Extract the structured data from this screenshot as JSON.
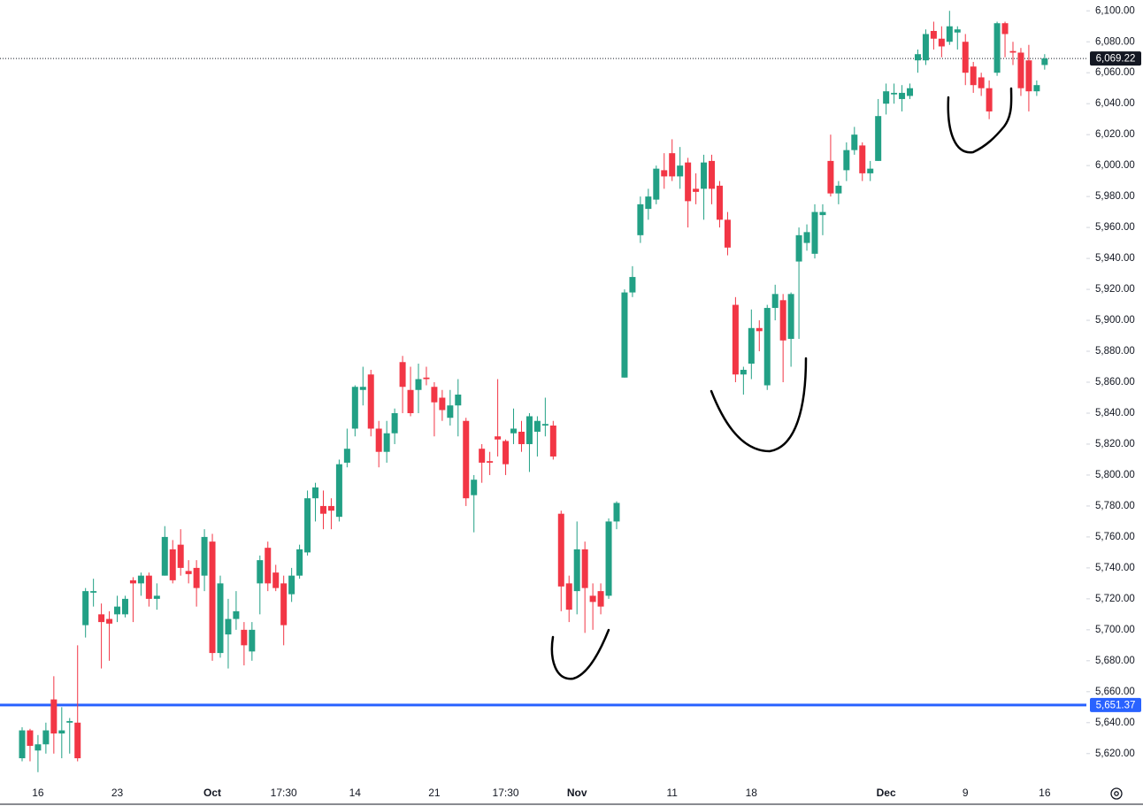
{
  "chart_data": {
    "type": "candlestick",
    "up_color": "#22a085",
    "down_color": "#f23645",
    "ylim": [
      5601,
      6107
    ],
    "yticks": [
      {
        "value": 5620,
        "label": "5,620.00"
      },
      {
        "value": 5640,
        "label": "5,640.00"
      },
      {
        "value": 5660,
        "label": "5,660.00"
      },
      {
        "value": 5680,
        "label": "5,680.00"
      },
      {
        "value": 5700,
        "label": "5,700.00"
      },
      {
        "value": 5720,
        "label": "5,720.00"
      },
      {
        "value": 5740,
        "label": "5,740.00"
      },
      {
        "value": 5760,
        "label": "5,760.00"
      },
      {
        "value": 5780,
        "label": "5,780.00"
      },
      {
        "value": 5800,
        "label": "5,800.00"
      },
      {
        "value": 5820,
        "label": "5,820.00"
      },
      {
        "value": 5840,
        "label": "5,840.00"
      },
      {
        "value": 5860,
        "label": "5,860.00"
      },
      {
        "value": 5880,
        "label": "5,880.00"
      },
      {
        "value": 5900,
        "label": "5,900.00"
      },
      {
        "value": 5920,
        "label": "5,920.00"
      },
      {
        "value": 5940,
        "label": "5,940.00"
      },
      {
        "value": 5960,
        "label": "5,960.00"
      },
      {
        "value": 5980,
        "label": "5,980.00"
      },
      {
        "value": 6000,
        "label": "6,000.00"
      },
      {
        "value": 6020,
        "label": "6,020.00"
      },
      {
        "value": 6040,
        "label": "6,040.00"
      },
      {
        "value": 6060,
        "label": "6,060.00"
      },
      {
        "value": 6080,
        "label": "6,080.00"
      },
      {
        "value": 6100,
        "label": "6,100.00"
      }
    ],
    "hlines": [
      {
        "value": 5651.37,
        "label": "5,651.37",
        "color": "#2962ff"
      },
      {
        "value": 6069.22,
        "label": "6,069.22",
        "color": "#131722"
      }
    ],
    "categories": [
      null,
      null,
      "16",
      null,
      null,
      null,
      null,
      null,
      null,
      null,
      null,
      null,
      "23",
      null,
      null,
      null,
      null,
      null,
      null,
      null,
      null,
      null,
      null,
      null,
      "Oct",
      null,
      null,
      null,
      null,
      null,
      null,
      null,
      null,
      "17:30",
      null,
      null,
      null,
      null,
      null,
      null,
      null,
      null,
      "14",
      null,
      null,
      null,
      null,
      null,
      null,
      null,
      null,
      null,
      "21",
      null,
      null,
      null,
      null,
      null,
      null,
      null,
      null,
      "17:30",
      null,
      null,
      null,
      null,
      null,
      null,
      null,
      null,
      "Nov",
      null,
      null,
      null,
      null,
      null,
      null,
      null,
      null,
      null,
      null,
      null,
      "11",
      null,
      null,
      null,
      null,
      null,
      null,
      null,
      null,
      null,
      "18",
      null,
      null,
      null,
      null,
      null,
      null,
      null,
      null,
      null,
      null,
      null,
      null,
      null,
      null,
      null,
      null,
      "Dec",
      null,
      null,
      null,
      null,
      null,
      null,
      null,
      null,
      null,
      "9",
      null,
      null,
      null,
      null,
      null,
      null,
      null,
      null,
      null,
      "16"
    ],
    "open": [
      5617,
      5635,
      5622,
      5626,
      5655,
      5633,
      5640,
      5640,
      5703,
      5724,
      5710,
      5707,
      5710,
      5710,
      5732,
      5730,
      5735,
      5720,
      5735,
      5752,
      5755,
      5738,
      5740,
      5735,
      5757,
      5685,
      5697,
      5707,
      5700,
      5686,
      5730,
      5753,
      5737,
      5730,
      5723,
      5735,
      5750,
      5785,
      5780,
      5780,
      5773,
      5808,
      5830,
      5855,
      5865,
      5830,
      5815,
      5827,
      5873,
      5855,
      5855,
      5863,
      5857,
      5850,
      5837,
      5845,
      5835,
      5787,
      5817,
      5809,
      5825,
      5822,
      5827,
      5828,
      5820,
      5828,
      5832,
      5832,
      5775,
      5730,
      5725,
      5752,
      5722,
      5725,
      5722,
      5770,
      5863,
      5918,
      5955,
      5972,
      5978,
      5997,
      6008,
      5993,
      6002,
      5985,
      5985,
      6003,
      5987,
      5965,
      5910,
      5865,
      5872,
      5895,
      5858,
      5908,
      5913,
      5888,
      5938,
      5950,
      5943,
      5968,
      6003,
      5982,
      5997,
      6010,
      6013,
      5995,
      6003,
      6040,
      6046,
      6043,
      6045,
      6068,
      6068,
      6087,
      6082,
      6080,
      6086,
      6080,
      6064,
      6057,
      6050,
      6060,
      6092,
      6074,
      6073,
      6068,
      6048,
      6065
    ],
    "high": [
      5637,
      5636,
      5632,
      5640,
      5670,
      5650,
      5643,
      5690,
      5727,
      5733,
      5717,
      5712,
      5722,
      5722,
      5734,
      5737,
      5737,
      5730,
      5767,
      5758,
      5765,
      5745,
      5745,
      5765,
      5762,
      5735,
      5720,
      5725,
      5705,
      5705,
      5748,
      5757,
      5742,
      5735,
      5740,
      5755,
      5790,
      5795,
      5790,
      5785,
      5810,
      5830,
      5858,
      5870,
      5868,
      5835,
      5835,
      5843,
      5877,
      5870,
      5872,
      5870,
      5860,
      5855,
      5855,
      5862,
      5837,
      5800,
      5820,
      5815,
      5862,
      5823,
      5843,
      5835,
      5840,
      5838,
      5850,
      5835,
      5777,
      5735,
      5770,
      5757,
      5730,
      5730,
      5772,
      5783,
      5920,
      5935,
      5980,
      5985,
      6000,
      6008,
      6017,
      6012,
      6005,
      5995,
      6007,
      6007,
      5990,
      5970,
      5915,
      5870,
      5907,
      5900,
      5910,
      5923,
      5917,
      5918,
      5960,
      5962,
      5975,
      5975,
      6020,
      5990,
      6015,
      6025,
      6015,
      6003,
      6043,
      6053,
      6053,
      6052,
      6053,
      6075,
      6088,
      6093,
      6090,
      6100,
      6090,
      6085,
      6067,
      6060,
      6055,
      6093,
      6093,
      6080,
      6076,
      6078,
      6055,
      6072
    ],
    "low": [
      5615,
      5615,
      5608,
      5620,
      5620,
      5617,
      5620,
      5615,
      5695,
      5715,
      5675,
      5680,
      5705,
      5708,
      5705,
      5722,
      5715,
      5713,
      5735,
      5730,
      5735,
      5730,
      5715,
      5725,
      5680,
      5682,
      5675,
      5700,
      5677,
      5680,
      5710,
      5725,
      5725,
      5690,
      5718,
      5733,
      5748,
      5770,
      5765,
      5765,
      5770,
      5805,
      5825,
      5845,
      5825,
      5805,
      5808,
      5820,
      5840,
      5838,
      5840,
      5858,
      5825,
      5835,
      5832,
      5825,
      5780,
      5763,
      5795,
      5800,
      5812,
      5800,
      5820,
      5815,
      5802,
      5812,
      5825,
      5810,
      5712,
      5705,
      5710,
      5698,
      5700,
      5710,
      5720,
      5765,
      5863,
      5915,
      5950,
      5965,
      5975,
      5985,
      5990,
      5985,
      5960,
      5975,
      5965,
      5975,
      5960,
      5942,
      5860,
      5852,
      5862,
      5880,
      5855,
      5900,
      5860,
      5870,
      5888,
      5945,
      5940,
      5955,
      5980,
      5975,
      5990,
      6007,
      5990,
      5990,
      6003,
      6033,
      6040,
      6035,
      6043,
      6060,
      6065,
      6075,
      6070,
      6078,
      6075,
      6052,
      6047,
      6045,
      6030,
      6058,
      6070,
      6065,
      6045,
      6035,
      6045,
      6062
    ],
    "close": [
      5635,
      5625,
      5626,
      5635,
      5633,
      5635,
      5641,
      5617,
      5725,
      5725,
      5705,
      5704,
      5715,
      5720,
      5730,
      5735,
      5720,
      5722,
      5760,
      5732,
      5740,
      5736,
      5727,
      5760,
      5685,
      5730,
      5707,
      5712,
      5690,
      5700,
      5745,
      5730,
      5727,
      5703,
      5735,
      5752,
      5785,
      5792,
      5775,
      5777,
      5807,
      5817,
      5857,
      5857,
      5830,
      5815,
      5827,
      5840,
      5857,
      5840,
      5862,
      5862,
      5847,
      5842,
      5845,
      5852,
      5785,
      5797,
      5808,
      5808,
      5823,
      5807,
      5830,
      5820,
      5838,
      5835,
      5833,
      5812,
      5728,
      5713,
      5752,
      5727,
      5718,
      5715,
      5770,
      5782,
      5918,
      5928,
      5975,
      5980,
      5998,
      5993,
      5993,
      6000,
      5977,
      5983,
      6002,
      5985,
      5965,
      5947,
      5865,
      5868,
      5895,
      5893,
      5908,
      5917,
      5887,
      5917,
      5955,
      5957,
      5970,
      5970,
      5982,
      5987,
      6010,
      6020,
      5995,
      5998,
      6032,
      6048,
      6047,
      6047,
      6050,
      6072,
      6085,
      6082,
      6077,
      6090,
      6088,
      6060,
      6052,
      6050,
      6035,
      6092,
      6085,
      6073,
      6050,
      6048,
      6052,
      6069.22
    ]
  }
}
